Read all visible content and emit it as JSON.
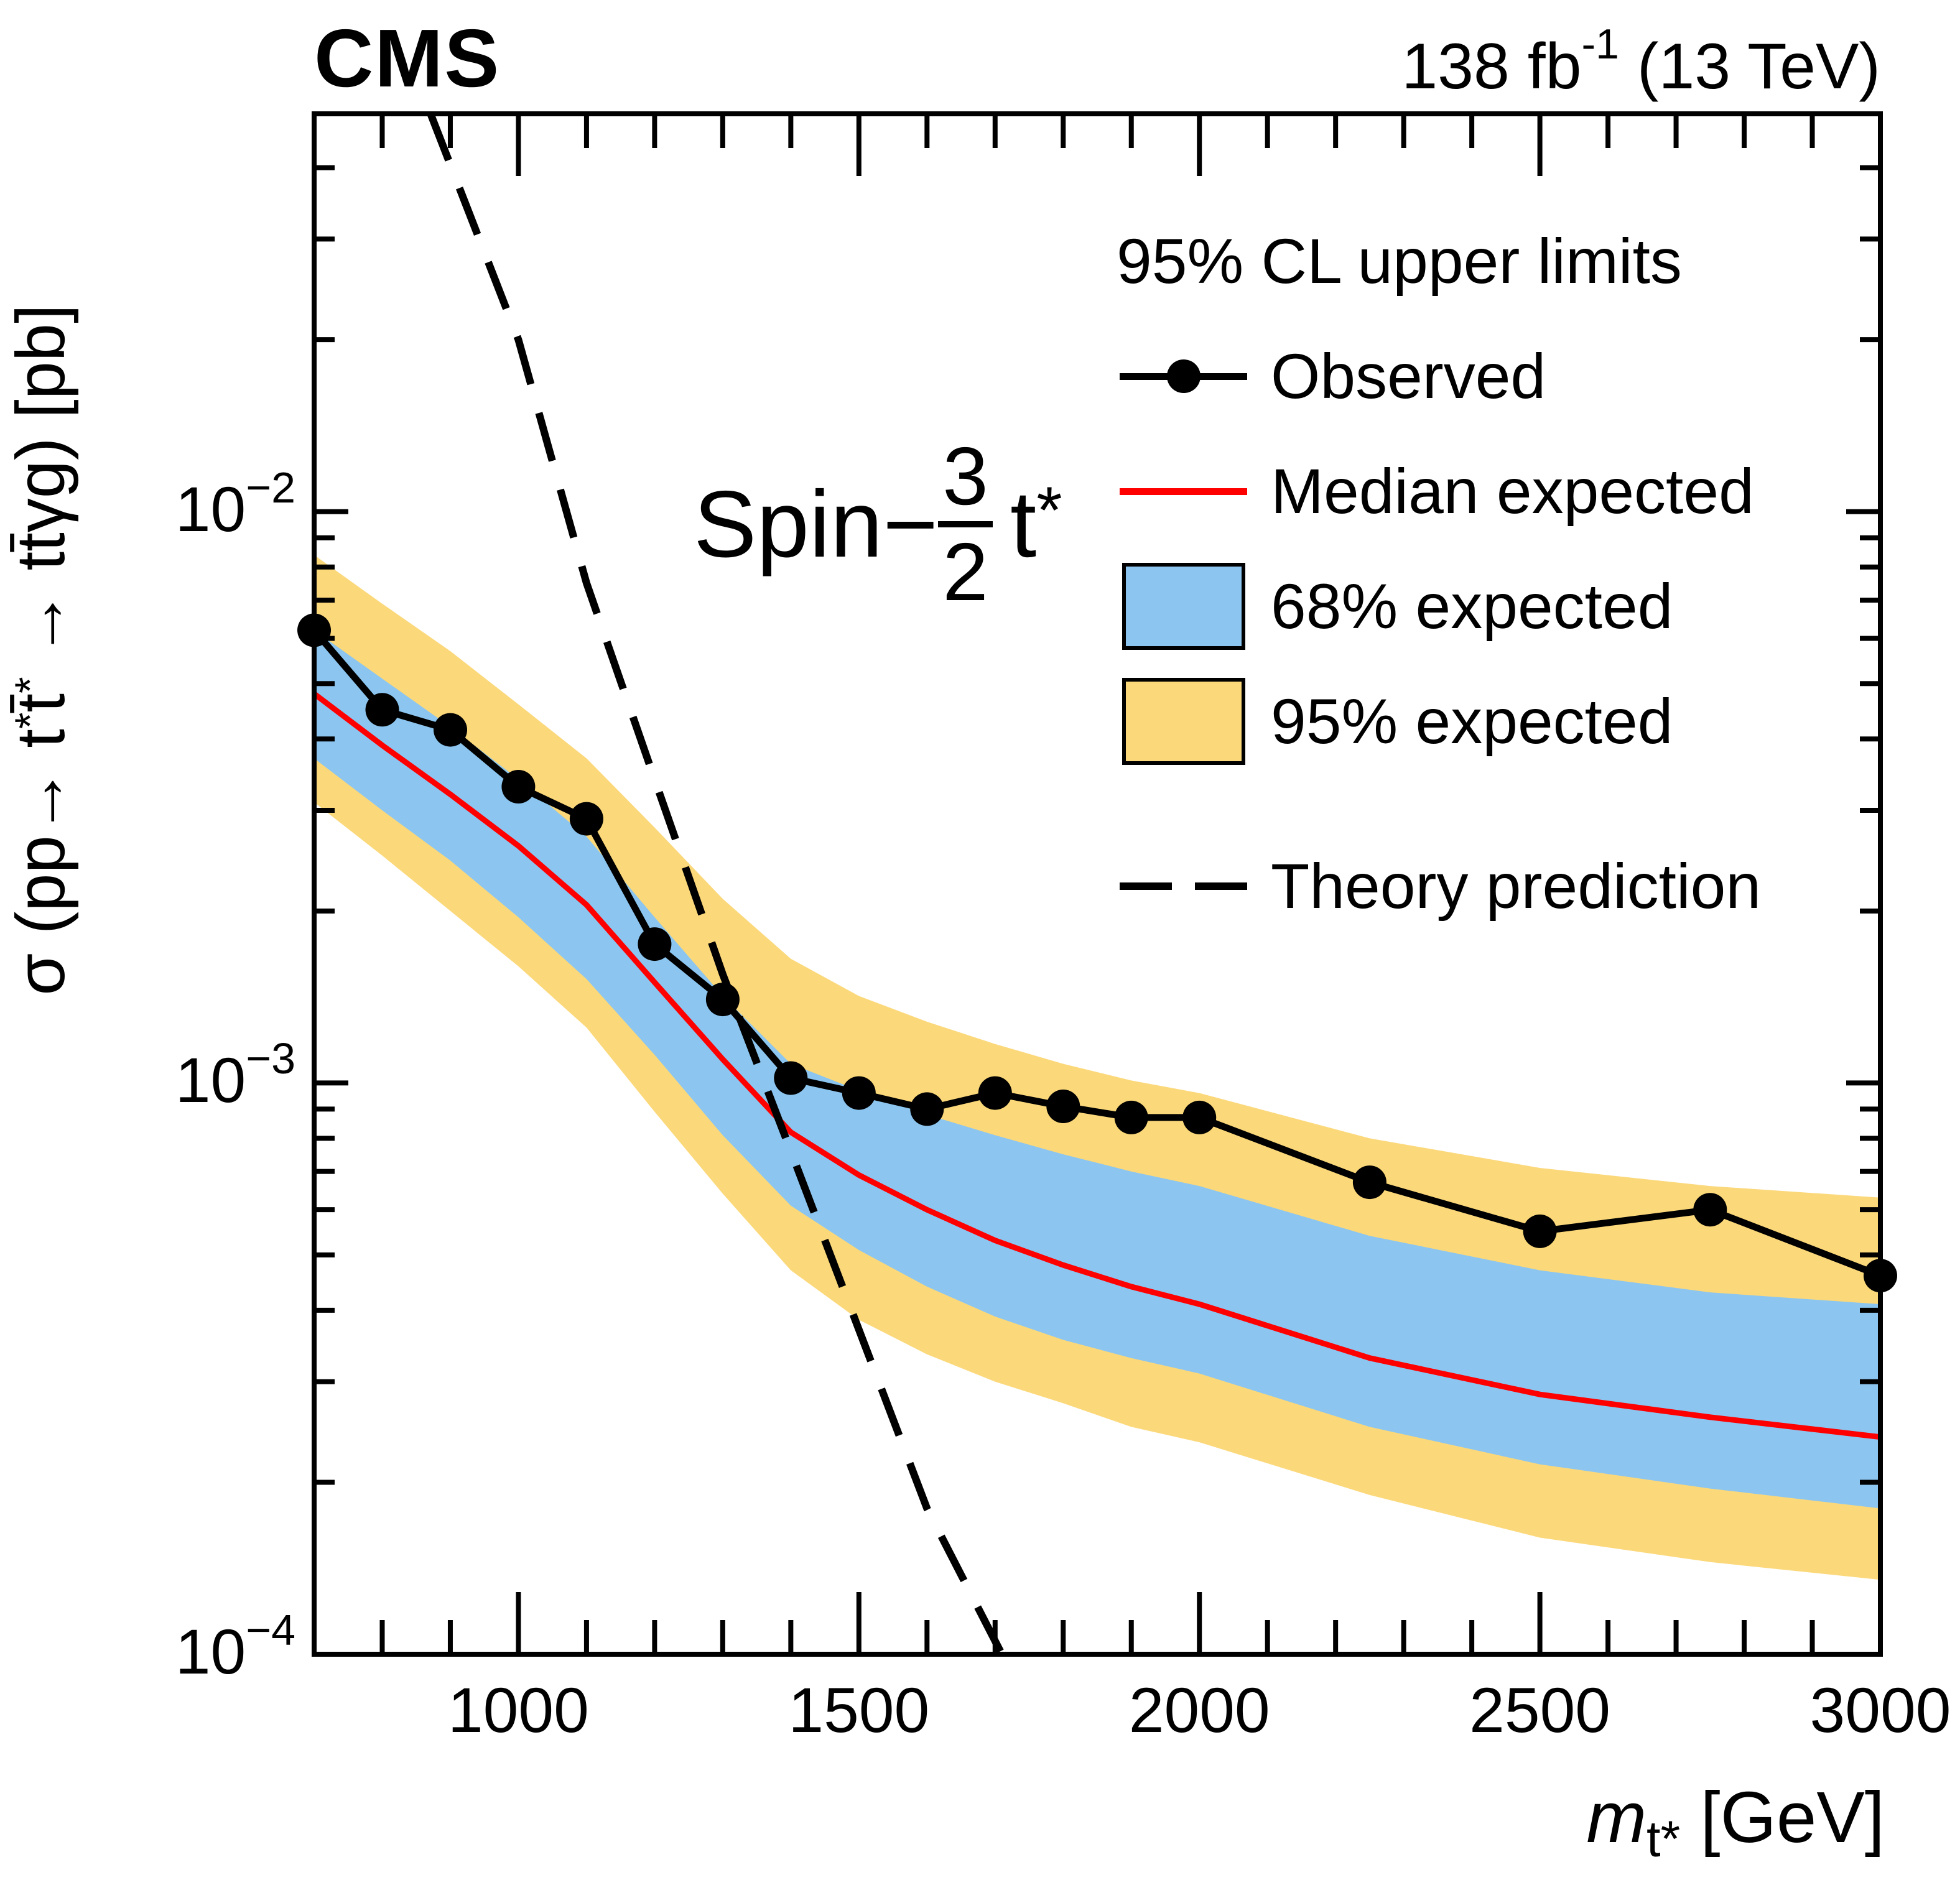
{
  "header": {
    "experiment": "CMS",
    "lumi_segments": [
      {
        "t": "138 fb"
      },
      {
        "t": "-1",
        "sup": 1
      },
      {
        "t": " (13 TeV)"
      }
    ]
  },
  "annotation": {
    "prefix": "Spin−",
    "numerator": "3",
    "denominator": "2",
    "particle": "t",
    "particle_sup": "*"
  },
  "legend": {
    "title": "95% CL upper limits",
    "entries": [
      {
        "label": "Observed"
      },
      {
        "label": "Median expected"
      },
      {
        "label": "68% expected"
      },
      {
        "label": "95% expected"
      },
      {
        "label": "Theory prediction"
      }
    ]
  },
  "axes": {
    "x_title_segments": [
      {
        "t": "m",
        "i": 1
      },
      {
        "t": "t*",
        "sub": 1
      },
      {
        "t": " [GeV]"
      }
    ],
    "y_title_segments": [
      {
        "t": "σ (pp→ t"
      },
      {
        "t": "*",
        "sup": 1
      },
      {
        "t": "t̄"
      },
      {
        "t": "*",
        "sup": 1
      },
      {
        "t": " → tt̄γg) [pb]"
      }
    ],
    "x_tick_labels": [
      {
        "text": "1000",
        "value": 1000
      },
      {
        "text": "1500",
        "value": 1500
      },
      {
        "text": "2000",
        "value": 2000
      },
      {
        "text": "2500",
        "value": 2500
      },
      {
        "text": "3000",
        "value": 3000
      }
    ],
    "y_tick_labels": [
      {
        "base": "10",
        "exp": "−2",
        "value": 0.01
      },
      {
        "base": "10",
        "exp": "−3",
        "value": 0.001
      },
      {
        "base": "10",
        "exp": "−4",
        "value": 0.0001
      }
    ]
  },
  "chart_data": {
    "type": "line",
    "title": "95% CL upper limits, Spin-3/2 t*",
    "xlabel": "m_t* [GeV]",
    "ylabel": "σ (pp→ t*t̄* → tt̄γg) [pb]",
    "xscale": "linear",
    "yscale": "log",
    "xlim": [
      700,
      3000
    ],
    "ylim": [
      0.0001,
      0.0497
    ],
    "grid": false,
    "legend_position": "upper right",
    "x": [
      700,
      800,
      900,
      1000,
      1100,
      1200,
      1300,
      1400,
      1500,
      1600,
      1700,
      1800,
      1900,
      2000,
      2250,
      2500,
      2750,
      3000
    ],
    "series": [
      {
        "name": "Observed",
        "style": "line+markers",
        "color": "#000000",
        "values": [
          0.0062,
          0.0045,
          0.00415,
          0.0033,
          0.0029,
          0.00175,
          0.0014,
          0.00102,
          0.00096,
          0.0009,
          0.00096,
          0.00091,
          0.00087,
          0.00087,
          0.00067,
          0.00055,
          0.0006,
          0.00046
        ]
      },
      {
        "name": "Median expected",
        "style": "line",
        "color": "#ff0000",
        "values": [
          0.0048,
          0.0039,
          0.0032,
          0.0026,
          0.00205,
          0.0015,
          0.0011,
          0.00082,
          0.00069,
          0.0006,
          0.00053,
          0.00048,
          0.00044,
          0.00041,
          0.00033,
          0.000285,
          0.00026,
          0.00024
        ]
      },
      {
        "name": "68% expected",
        "style": "band",
        "color": "#8CC6F0",
        "high": [
          0.0062,
          0.0051,
          0.0042,
          0.0034,
          0.0027,
          0.00195,
          0.00142,
          0.00108,
          0.00097,
          0.00088,
          0.00081,
          0.00075,
          0.0007,
          0.00066,
          0.00054,
          0.00047,
          0.00043,
          0.00041
        ],
        "low": [
          0.0037,
          0.003,
          0.00245,
          0.00195,
          0.00152,
          0.00112,
          0.00081,
          0.00061,
          0.00051,
          0.00044,
          0.00039,
          0.000355,
          0.00033,
          0.00031,
          0.00025,
          0.000215,
          0.000195,
          0.00018
        ]
      },
      {
        "name": "95% expected",
        "style": "band",
        "color": "#FBD87A",
        "high": [
          0.0084,
          0.0069,
          0.0057,
          0.0046,
          0.0037,
          0.0028,
          0.0021,
          0.00165,
          0.00142,
          0.00128,
          0.00117,
          0.00108,
          0.00101,
          0.00096,
          0.0008,
          0.00071,
          0.00066,
          0.00063
        ],
        "low": [
          0.0031,
          0.0025,
          0.002,
          0.0016,
          0.00125,
          0.00089,
          0.00064,
          0.00047,
          0.000385,
          0.000335,
          0.0003,
          0.000275,
          0.00025,
          0.000235,
          0.00019,
          0.00016,
          0.000145,
          0.000135
        ]
      },
      {
        "name": "Theory prediction",
        "style": "dashed-line",
        "color": "#000000",
        "points": [
          [
            871,
            0.0497
          ],
          [
            1000,
            0.02
          ],
          [
            1100,
            0.0075
          ],
          [
            1200,
            0.0034
          ],
          [
            1300,
            0.00155
          ],
          [
            1400,
            0.00076
          ],
          [
            1500,
            0.00037
          ],
          [
            1600,
            0.00018
          ],
          [
            1710,
            0.0001
          ]
        ]
      }
    ],
    "colors": {
      "observed": "#000000",
      "median": "#ff0000",
      "band68": "#8CC6F0",
      "band95": "#FBD87A",
      "frame": "#000000",
      "background": "#ffffff"
    }
  }
}
